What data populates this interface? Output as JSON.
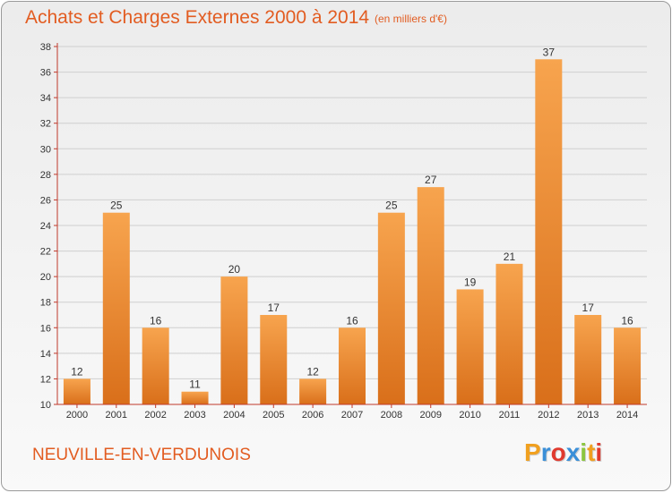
{
  "header": {
    "title": "Achats et Charges Externes 2000 à 2014",
    "subtitle": "(en milliers d'€)"
  },
  "footer": {
    "commune": "NEUVILLE-EN-VERDUNOIS",
    "logo_letters": [
      "P",
      "r",
      "o",
      "x",
      "i",
      "t",
      "i"
    ],
    "logo_colors": [
      "#f0a020",
      "#3a8fd8",
      "#e03a2e",
      "#3a8fd8",
      "#8cc63f",
      "#f0a020",
      "#e03a2e"
    ]
  },
  "chart_data": {
    "type": "bar",
    "title": "Achats et Charges Externes 2000 à 2014",
    "subtitle": "(en milliers d'€)",
    "categories": [
      "2000",
      "2001",
      "2002",
      "2003",
      "2004",
      "2005",
      "2006",
      "2007",
      "2008",
      "2009",
      "2010",
      "2011",
      "2012",
      "2013",
      "2014"
    ],
    "values": [
      12,
      25,
      16,
      11,
      20,
      17,
      12,
      16,
      25,
      27,
      19,
      21,
      37,
      17,
      16
    ],
    "ylim": [
      10,
      38
    ],
    "yticks": [
      10,
      12,
      14,
      16,
      18,
      20,
      22,
      24,
      26,
      28,
      30,
      32,
      34,
      36,
      38
    ],
    "grid": true,
    "bar_color_top": "#f7a44e",
    "bar_color_bottom": "#d96f1a",
    "axis_color": "#c0392b",
    "grid_color": "#cfcfcf"
  }
}
